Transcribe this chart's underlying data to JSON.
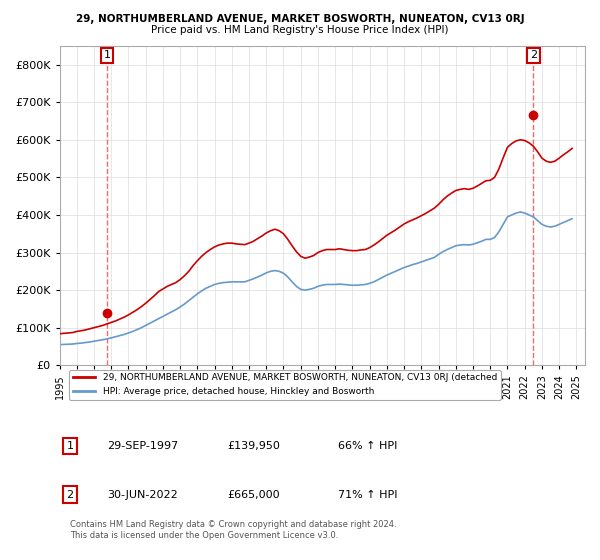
{
  "title_line1": "29, NORTHUMBERLAND AVENUE, MARKET BOSWORTH, NUNEATON, CV13 0RJ",
  "title_line2": "Price paid vs. HM Land Registry's House Price Index (HPI)",
  "ylabel": "",
  "xlim_start": 1995.0,
  "xlim_end": 2025.5,
  "ylim_min": 0,
  "ylim_max": 850000,
  "yticks": [
    0,
    100000,
    200000,
    300000,
    400000,
    500000,
    600000,
    700000,
    800000
  ],
  "ytick_labels": [
    "£0",
    "£100K",
    "£200K",
    "£300K",
    "£400K",
    "£500K",
    "£600K",
    "£700K",
    "£800K"
  ],
  "sale1_x": 1997.75,
  "sale1_y": 139950,
  "sale1_label": "1",
  "sale2_x": 2022.5,
  "sale2_y": 665000,
  "sale2_label": "2",
  "sale_color": "#cc0000",
  "hpi_color": "#6699cc",
  "vline_color": "#ff6666",
  "annotation_box_color": "#cc0000",
  "legend_label_red": "29, NORTHUMBERLAND AVENUE, MARKET BOSWORTH, NUNEATON, CV13 0RJ (detached",
  "legend_label_blue": "HPI: Average price, detached house, Hinckley and Bosworth",
  "table_row1": [
    "1",
    "29-SEP-1997",
    "£139,950",
    "66% ↑ HPI"
  ],
  "table_row2": [
    "2",
    "30-JUN-2022",
    "£665,000",
    "71% ↑ HPI"
  ],
  "footer": "Contains HM Land Registry data © Crown copyright and database right 2024.\nThis data is licensed under the Open Government Licence v3.0.",
  "xtick_years": [
    1995,
    1996,
    1997,
    1998,
    1999,
    2000,
    2001,
    2002,
    2003,
    2004,
    2005,
    2006,
    2007,
    2008,
    2009,
    2010,
    2011,
    2012,
    2013,
    2014,
    2015,
    2016,
    2017,
    2018,
    2019,
    2020,
    2021,
    2022,
    2023,
    2024,
    2025
  ],
  "hpi_years": [
    1995.0,
    1995.25,
    1995.5,
    1995.75,
    1996.0,
    1996.25,
    1996.5,
    1996.75,
    1997.0,
    1997.25,
    1997.5,
    1997.75,
    1998.0,
    1998.25,
    1998.5,
    1998.75,
    1999.0,
    1999.25,
    1999.5,
    1999.75,
    2000.0,
    2000.25,
    2000.5,
    2000.75,
    2001.0,
    2001.25,
    2001.5,
    2001.75,
    2002.0,
    2002.25,
    2002.5,
    2002.75,
    2003.0,
    2003.25,
    2003.5,
    2003.75,
    2004.0,
    2004.25,
    2004.5,
    2004.75,
    2005.0,
    2005.25,
    2005.5,
    2005.75,
    2006.0,
    2006.25,
    2006.5,
    2006.75,
    2007.0,
    2007.25,
    2007.5,
    2007.75,
    2008.0,
    2008.25,
    2008.5,
    2008.75,
    2009.0,
    2009.25,
    2009.5,
    2009.75,
    2010.0,
    2010.25,
    2010.5,
    2010.75,
    2011.0,
    2011.25,
    2011.5,
    2011.75,
    2012.0,
    2012.25,
    2012.5,
    2012.75,
    2013.0,
    2013.25,
    2013.5,
    2013.75,
    2014.0,
    2014.25,
    2014.5,
    2014.75,
    2015.0,
    2015.25,
    2015.5,
    2015.75,
    2016.0,
    2016.25,
    2016.5,
    2016.75,
    2017.0,
    2017.25,
    2017.5,
    2017.75,
    2018.0,
    2018.25,
    2018.5,
    2018.75,
    2019.0,
    2019.25,
    2019.5,
    2019.75,
    2020.0,
    2020.25,
    2020.5,
    2020.75,
    2021.0,
    2021.25,
    2021.5,
    2021.75,
    2022.0,
    2022.25,
    2022.5,
    2022.75,
    2023.0,
    2023.25,
    2023.5,
    2023.75,
    2024.0,
    2024.25,
    2024.5,
    2024.75
  ],
  "hpi_values": [
    55000,
    55500,
    56000,
    56500,
    58000,
    59000,
    60500,
    62000,
    64000,
    66000,
    68000,
    70000,
    73000,
    76000,
    79000,
    82000,
    86000,
    90000,
    95000,
    100000,
    106000,
    112000,
    118000,
    124000,
    130000,
    136000,
    142000,
    148000,
    155000,
    163000,
    172000,
    181000,
    190000,
    198000,
    205000,
    210000,
    215000,
    218000,
    220000,
    221000,
    222000,
    222000,
    222000,
    222000,
    226000,
    230000,
    235000,
    240000,
    246000,
    250000,
    252000,
    250000,
    245000,
    235000,
    222000,
    210000,
    202000,
    200000,
    202000,
    205000,
    210000,
    213000,
    215000,
    215000,
    215000,
    216000,
    215000,
    214000,
    213000,
    213000,
    214000,
    215000,
    218000,
    222000,
    228000,
    234000,
    240000,
    245000,
    250000,
    255000,
    260000,
    264000,
    268000,
    271000,
    275000,
    279000,
    283000,
    287000,
    295000,
    302000,
    308000,
    313000,
    318000,
    320000,
    321000,
    320000,
    322000,
    326000,
    330000,
    335000,
    335000,
    340000,
    355000,
    375000,
    395000,
    400000,
    405000,
    408000,
    405000,
    400000,
    395000,
    385000,
    375000,
    370000,
    368000,
    370000,
    375000,
    380000,
    385000,
    390000
  ],
  "red_line_years": [
    1995.0,
    1995.25,
    1995.5,
    1995.75,
    1996.0,
    1996.25,
    1996.5,
    1996.75,
    1997.0,
    1997.25,
    1997.5,
    1997.75,
    1998.0,
    1998.25,
    1998.5,
    1998.75,
    1999.0,
    1999.25,
    1999.5,
    1999.75,
    2000.0,
    2000.25,
    2000.5,
    2000.75,
    2001.0,
    2001.25,
    2001.5,
    2001.75,
    2002.0,
    2002.25,
    2002.5,
    2002.75,
    2003.0,
    2003.25,
    2003.5,
    2003.75,
    2004.0,
    2004.25,
    2004.5,
    2004.75,
    2005.0,
    2005.25,
    2005.5,
    2005.75,
    2006.0,
    2006.25,
    2006.5,
    2006.75,
    2007.0,
    2007.25,
    2007.5,
    2007.75,
    2008.0,
    2008.25,
    2008.5,
    2008.75,
    2009.0,
    2009.25,
    2009.5,
    2009.75,
    2010.0,
    2010.25,
    2010.5,
    2010.75,
    2011.0,
    2011.25,
    2011.5,
    2011.75,
    2012.0,
    2012.25,
    2012.5,
    2012.75,
    2013.0,
    2013.25,
    2013.5,
    2013.75,
    2014.0,
    2014.25,
    2014.5,
    2014.75,
    2015.0,
    2015.25,
    2015.5,
    2015.75,
    2016.0,
    2016.25,
    2016.5,
    2016.75,
    2017.0,
    2017.25,
    2017.5,
    2017.75,
    2018.0,
    2018.25,
    2018.5,
    2018.75,
    2019.0,
    2019.25,
    2019.5,
    2019.75,
    2020.0,
    2020.25,
    2020.5,
    2020.75,
    2021.0,
    2021.25,
    2021.5,
    2021.75,
    2022.0,
    2022.25,
    2022.5,
    2022.75,
    2023.0,
    2023.25,
    2023.5,
    2023.75,
    2024.0,
    2024.25,
    2024.5,
    2024.75
  ],
  "red_line_values": [
    84000,
    85000,
    86000,
    87000,
    90000,
    92000,
    94000,
    97000,
    100000,
    103000,
    106000,
    110000,
    114000,
    118000,
    123000,
    128000,
    134000,
    141000,
    148000,
    156000,
    165000,
    175000,
    185000,
    196000,
    203000,
    210000,
    215000,
    220000,
    228000,
    238000,
    250000,
    265000,
    278000,
    290000,
    300000,
    308000,
    315000,
    320000,
    323000,
    325000,
    325000,
    323000,
    322000,
    321000,
    325000,
    330000,
    337000,
    344000,
    352000,
    358000,
    362000,
    358000,
    350000,
    335000,
    318000,
    302000,
    290000,
    285000,
    288000,
    292000,
    300000,
    305000,
    308000,
    308000,
    308000,
    310000,
    308000,
    306000,
    305000,
    305000,
    307000,
    308000,
    313000,
    320000,
    328000,
    337000,
    346000,
    353000,
    360000,
    368000,
    376000,
    382000,
    387000,
    392000,
    398000,
    404000,
    411000,
    418000,
    428000,
    440000,
    450000,
    458000,
    465000,
    468000,
    470000,
    468000,
    471000,
    477000,
    484000,
    491000,
    492000,
    500000,
    522000,
    552000,
    580000,
    590000,
    597000,
    600000,
    598000,
    592000,
    583000,
    568000,
    551000,
    543000,
    540000,
    543000,
    551000,
    560000,
    568000,
    577000
  ]
}
